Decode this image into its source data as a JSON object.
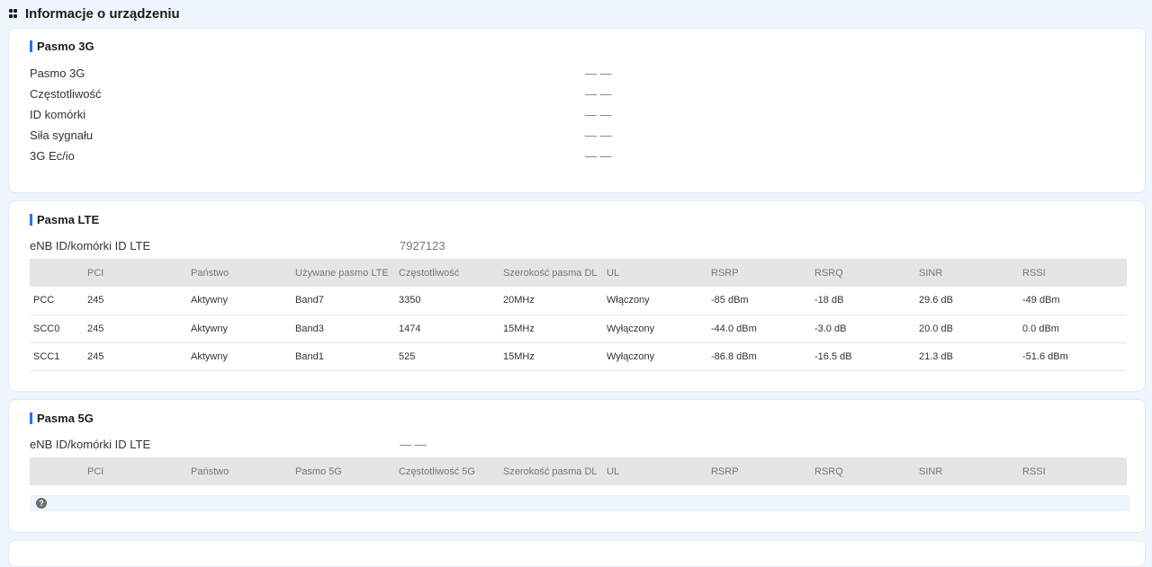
{
  "page": {
    "title": "Informacje o urządzeniu"
  },
  "band3g": {
    "title": "Pasmo 3G",
    "rows": [
      {
        "label": "Pasmo 3G",
        "value": "— —"
      },
      {
        "label": "Częstotliwość",
        "value": "— —"
      },
      {
        "label": "ID komórki",
        "value": "— —"
      },
      {
        "label": "Siła sygnału",
        "value": "— —"
      },
      {
        "label": "3G Ec/io",
        "value": "— —"
      }
    ]
  },
  "lte": {
    "title": "Pasma LTE",
    "enb_label": "eNB ID/komórki ID LTE",
    "enb_value": "7927123",
    "headers": [
      "",
      "PCI",
      "Państwo",
      "Używane pasmo LTE",
      "Częstotliwość",
      "Szerokość pasma DL",
      "UL",
      "RSRP",
      "RSRQ",
      "SINR",
      "RSSI"
    ],
    "rows": [
      [
        "PCC",
        "245",
        "Aktywny",
        "Band7",
        "3350",
        "20MHz",
        "Włączony",
        "-85 dBm",
        "-18 dB",
        "29.6 dB",
        "-49 dBm"
      ],
      [
        "SCC0",
        "245",
        "Aktywny",
        "Band3",
        "1474",
        "15MHz",
        "Wyłączony",
        "-44.0 dBm",
        "-3.0 dB",
        "20.0 dB",
        "0.0 dBm"
      ],
      [
        "SCC1",
        "245",
        "Aktywny",
        "Band1",
        "525",
        "15MHz",
        "Wyłączony",
        "-86.8 dBm",
        "-16.5 dB",
        "21.3 dB",
        "-51.6 dBm"
      ]
    ]
  },
  "nr5g": {
    "title": "Pasma 5G",
    "enb_label": "eNB ID/komórki ID LTE",
    "enb_value": "— —",
    "headers": [
      "",
      "PCI",
      "Państwo",
      "Pasmo 5G",
      "Częstotliwość 5G",
      "Szerokość pasma DL",
      "UL",
      "RSRP",
      "RSRQ",
      "SINR",
      "RSSI"
    ],
    "empty_icon": "help-icon",
    "empty_icon_glyph": "?"
  }
}
